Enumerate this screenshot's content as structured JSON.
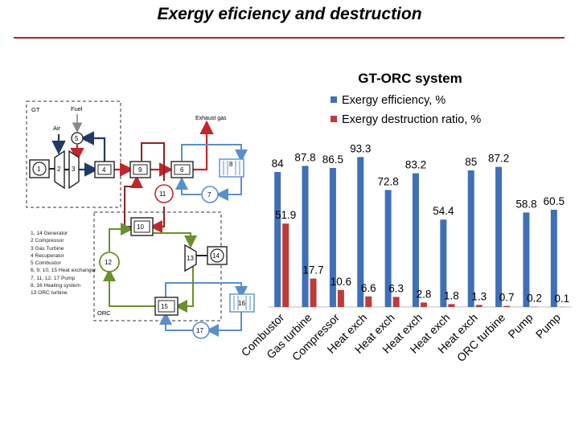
{
  "slide": {
    "title": "Exergy  eficiency and destruction"
  },
  "diagram": {
    "gt_label": "GT",
    "orc_label": "ORC",
    "air_label": "Air",
    "fuel_label": "Fuel",
    "exhaust_label": "Exhaust gas",
    "nodes": [
      "1",
      "2",
      "3",
      "4",
      "5",
      "6",
      "7",
      "8",
      "9",
      "10",
      "11",
      "12",
      "13",
      "14",
      "15",
      "16",
      "17"
    ],
    "component_list": [
      "1, 14 Generator",
      "2 Compressor",
      "3 Gas Turbine",
      "4 Recuperator",
      "5 Combustor",
      "6, 9, 10, 15 Heat exchanger",
      "7, 11, 12, 17 Pump",
      "8, 16 Heating system",
      "13 ORC turbine"
    ],
    "colors": {
      "hot_gas": "#c0272d",
      "water": "#5b8fc9",
      "orc_fluid": "#6a8f2f",
      "air_fuel": "#1f3a66"
    }
  },
  "chart_data": {
    "type": "bar",
    "title": "GT-ORC system",
    "categories": [
      "Combustor",
      "Gas turbine",
      "Compressor",
      "Heat exch",
      "Heat exch",
      "Heat exch",
      "Heat exch",
      "Heat exch",
      "ORC turbine",
      "Pump",
      "Pump"
    ],
    "series": [
      {
        "name": "Exergy efficiency, %",
        "color": "#3f6fb6",
        "values": [
          84,
          87.8,
          86.5,
          93.3,
          72.8,
          83.2,
          54.4,
          85,
          87.2,
          58.8,
          60.5
        ]
      },
      {
        "name": "Exergy destruction ratio, %",
        "color": "#c0393b",
        "values": [
          51.9,
          17.7,
          10.6,
          6.6,
          6.3,
          2.8,
          1.8,
          1.3,
          0.7,
          0.2,
          0.1
        ]
      }
    ],
    "ylim": [
      0,
      100
    ],
    "grid": false,
    "legend_position": "top"
  }
}
